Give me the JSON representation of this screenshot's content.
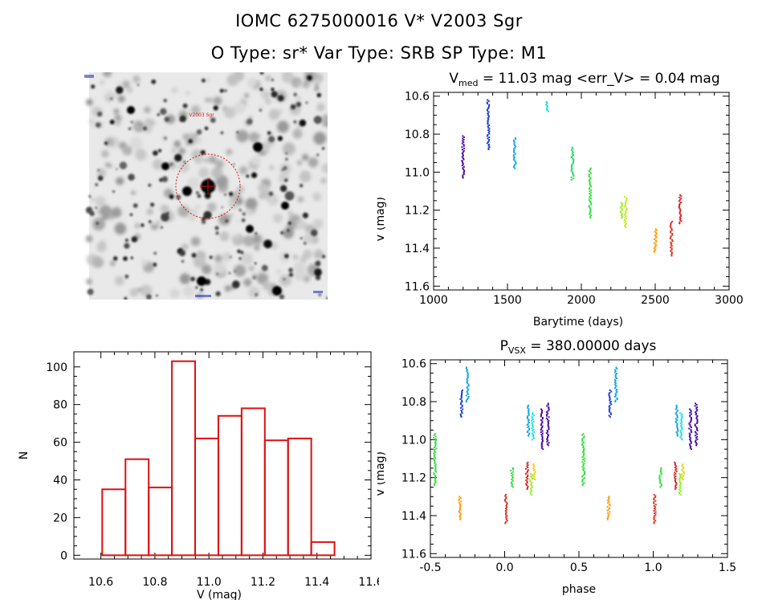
{
  "header": {
    "title_line1": "IOMC 6275000016    V* V2003 Sgr",
    "title_line2": "O Type: sr*  Var Type: SRB  SP Type: M1"
  },
  "image_panel": {
    "target_label": "V2003 Sgr"
  },
  "colors": {
    "histogram": "#dd1111",
    "circle": "#dd1111",
    "phase_sequence": [
      "#4b0fa8",
      "#1f3fd0",
      "#14a8e8",
      "#22e0e0",
      "#22dd66",
      "#99ee22",
      "#e8d020",
      "#ff9900",
      "#dd2222"
    ]
  },
  "chart_data": [
    {
      "type": "scatter",
      "title_main": "V",
      "title_sub": "med",
      "title_rest": " = 11.03 mag <err_V> = 0.04 mag",
      "xlabel": "Barytime (days)",
      "ylabel": "V (mag)",
      "xlim": [
        1000,
        3000
      ],
      "ylim": [
        11.62,
        10.58
      ],
      "xticks": [
        "1000",
        "1500",
        "2000",
        "2500",
        "3000"
      ],
      "yticks": [
        "10.6",
        "10.8",
        "11.0",
        "11.2",
        "11.4",
        "11.6"
      ],
      "grid": false,
      "clusters": [
        {
          "x": 1200,
          "y_top": 10.81,
          "y_bot": 11.03,
          "color": "#4b0fa8"
        },
        {
          "x": 1370,
          "y_top": 10.62,
          "y_bot": 10.88,
          "color": "#1f3fd0"
        },
        {
          "x": 1550,
          "y_top": 10.82,
          "y_bot": 10.98,
          "color": "#14a8e8"
        },
        {
          "x": 1770,
          "y_top": 10.63,
          "y_bot": 10.68,
          "color": "#22e0e0"
        },
        {
          "x": 1940,
          "y_top": 10.87,
          "y_bot": 11.04,
          "color": "#22dd66"
        },
        {
          "x": 2060,
          "y_top": 10.98,
          "y_bot": 11.24,
          "color": "#33e040"
        },
        {
          "x": 2270,
          "y_top": 11.16,
          "y_bot": 11.24,
          "color": "#99ee22"
        },
        {
          "x": 2300,
          "y_top": 11.13,
          "y_bot": 11.29,
          "color": "#c0ee22"
        },
        {
          "x": 2500,
          "y_top": 11.3,
          "y_bot": 11.42,
          "color": "#ff9900"
        },
        {
          "x": 2610,
          "y_top": 11.26,
          "y_bot": 11.44,
          "color": "#dd3322"
        },
        {
          "x": 2670,
          "y_top": 11.12,
          "y_bot": 11.27,
          "color": "#dd2222"
        }
      ]
    },
    {
      "type": "scatter",
      "title_main": "P",
      "title_sub": "VSX",
      "title_rest": " = 380.00000 days",
      "xlabel": "phase",
      "ylabel": "V (mag)",
      "xlim": [
        -0.5,
        1.5
      ],
      "ylim": [
        11.62,
        10.58
      ],
      "xticks": [
        "-0.5",
        "0.0",
        "0.5",
        "1.0",
        "1.5"
      ],
      "yticks": [
        "10.6",
        "10.8",
        "11.0",
        "11.2",
        "11.4",
        "11.6"
      ],
      "grid": false,
      "clusters": [
        {
          "x": -0.29,
          "y_top": 10.74,
          "y_bot": 10.88,
          "color": "#1f3fd0"
        },
        {
          "x": -0.25,
          "y_top": 10.62,
          "y_bot": 10.8,
          "color": "#14a8e8"
        },
        {
          "x": 0.16,
          "y_top": 10.82,
          "y_bot": 10.98,
          "color": "#14a8e8"
        },
        {
          "x": 0.19,
          "y_top": 10.86,
          "y_bot": 11.0,
          "color": "#22e0e0"
        },
        {
          "x": 0.25,
          "y_top": 10.84,
          "y_bot": 11.05,
          "color": "#4b0fa8"
        },
        {
          "x": 0.29,
          "y_top": 10.81,
          "y_bot": 11.03,
          "color": "#4b0fa8"
        },
        {
          "x": -0.47,
          "y_top": 10.97,
          "y_bot": 11.24,
          "color": "#33e040"
        },
        {
          "x": 0.05,
          "y_top": 11.15,
          "y_bot": 11.25,
          "color": "#33e040"
        },
        {
          "x": 0.15,
          "y_top": 11.12,
          "y_bot": 11.26,
          "color": "#dd2222"
        },
        {
          "x": 0.18,
          "y_top": 11.18,
          "y_bot": 11.29,
          "color": "#99ee22"
        },
        {
          "x": 0.2,
          "y_top": 11.13,
          "y_bot": 11.21,
          "color": "#e8d020"
        },
        {
          "x": -0.3,
          "y_top": 11.3,
          "y_bot": 11.42,
          "color": "#ff9900"
        },
        {
          "x": 0.01,
          "y_top": 11.29,
          "y_bot": 11.44,
          "color": "#dd3322"
        },
        {
          "x": 0.71,
          "y_top": 10.74,
          "y_bot": 10.88,
          "color": "#1f3fd0"
        },
        {
          "x": 0.75,
          "y_top": 10.62,
          "y_bot": 10.8,
          "color": "#14a8e8"
        },
        {
          "x": 1.16,
          "y_top": 10.82,
          "y_bot": 10.98,
          "color": "#14a8e8"
        },
        {
          "x": 1.19,
          "y_top": 10.86,
          "y_bot": 11.0,
          "color": "#22e0e0"
        },
        {
          "x": 1.25,
          "y_top": 10.84,
          "y_bot": 11.05,
          "color": "#4b0fa8"
        },
        {
          "x": 1.29,
          "y_top": 10.81,
          "y_bot": 11.03,
          "color": "#4b0fa8"
        },
        {
          "x": 0.53,
          "y_top": 10.97,
          "y_bot": 11.24,
          "color": "#33e040"
        },
        {
          "x": 1.05,
          "y_top": 11.15,
          "y_bot": 11.25,
          "color": "#33e040"
        },
        {
          "x": 1.15,
          "y_top": 11.12,
          "y_bot": 11.26,
          "color": "#dd2222"
        },
        {
          "x": 1.18,
          "y_top": 11.18,
          "y_bot": 11.29,
          "color": "#99ee22"
        },
        {
          "x": 1.2,
          "y_top": 11.13,
          "y_bot": 11.21,
          "color": "#e8d020"
        },
        {
          "x": 0.7,
          "y_top": 11.3,
          "y_bot": 11.42,
          "color": "#ff9900"
        },
        {
          "x": 1.01,
          "y_top": 11.29,
          "y_bot": 11.44,
          "color": "#dd3322"
        }
      ]
    },
    {
      "type": "bar",
      "xlabel": "V (mag)",
      "ylabel": "N",
      "xlim": [
        10.5,
        11.6
      ],
      "ylim": [
        -2,
        108
      ],
      "xticks": [
        "10.6",
        "10.8",
        "11.0",
        "11.2",
        "11.4",
        "11.6"
      ],
      "yticks": [
        "0",
        "20",
        "40",
        "60",
        "80",
        "100"
      ],
      "grid": false,
      "bin_edges": [
        10.605,
        10.691,
        10.777,
        10.863,
        10.949,
        11.035,
        11.121,
        11.207,
        11.293,
        11.379,
        11.465
      ],
      "values": [
        35,
        51,
        36,
        103,
        62,
        74,
        78,
        61,
        62,
        7
      ]
    }
  ]
}
